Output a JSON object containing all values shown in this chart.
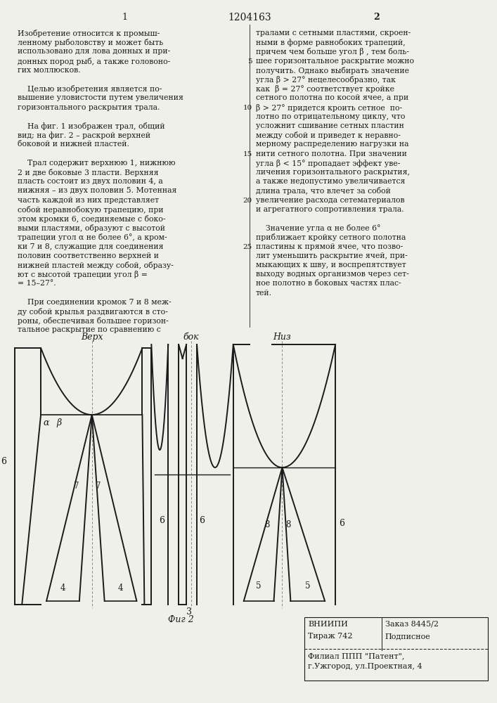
{
  "title_center": "1204163",
  "page_left": "1",
  "page_right": "2",
  "col1_text": [
    "Изобретение относится к промыш-",
    "ленному рыболовству и может быть",
    "использовано для лова донных и при-",
    "донных пород рыб, а также головоно-",
    "гих моллюсков.",
    "",
    "    Целью изобретения является по-",
    "вышение уловистости путем увеличения",
    "горизонтального раскрытия трала.",
    "",
    "    На фиг. 1 изображен трал, общий",
    "вид; на фиг. 2 – раскрой верхней",
    "боковой и нижней пластей.",
    "",
    "    Трал содержит верхнюю 1, нижнюю",
    "2 и две боковые 3 пласти. Верхняя",
    "пласть состоит из двух половин 4, а",
    "нижняя – из двух половин 5. Мотенная",
    "часть каждой из них представляет",
    "собой неравнобокую трапецию, при",
    "этом кромки 6, соединяемые с боко-",
    "выми пластями, образуют с высотой",
    "трапеции угол α не более 6°, а кром-",
    "ки 7 и 8, служащие для соединения",
    "половин соответственно верхней и",
    "нижней пластей между собой, образу-",
    "ют с высотой трапеции угол β =",
    "= 15–27°.",
    "",
    "    При соединении кромок 7 и 8 меж-",
    "ду собой крылья раздвигаются в сто-",
    "роны, обеспечивая большее горизон-",
    "тальное раскрытие по сравнению с"
  ],
  "col2_text": [
    "тралами с сетными пластями, скроен-",
    "ными в форме равнобоких трапеций,",
    "причем чем больше угол β , тем боль-",
    "шее горизонтальное раскрытие можно",
    "получить. Однако выбирать значение",
    "угла β > 27° нецелесообразно, так",
    "как  β = 27° соответствует кройке",
    "сетного полотна по косой ячее, а при",
    "β > 27° придется кроить сетное  по-",
    "лотно по отрицательному циклу, что",
    "усложнит сшивание сетных пластин",
    "между собой и приведет к неравно-",
    "мерному распределению нагрузки на",
    "нити сетного полотна. При значении",
    "угла β < 15° пропадает эффект уве-",
    "личения горизонтального раскрытия,",
    "а также недопустимо увеличивается",
    "длина трала, что влечет за собой",
    "увеличение расхода сетематериалов",
    "и агрегатного сопротивления трала.",
    "",
    "    Значение угла α не более 6°",
    "приближает кройку сетного полотна",
    "пластины к прямой ячее, что позво-",
    "лит уменьшить раскрытие ячей, при-",
    "мыкающих к шву, и воспрепятствует",
    "выходу водных организмов через сет-",
    "ное полотно в боковых частях плас-",
    "тей."
  ],
  "fig_caption": "Фиг 2",
  "label_verk": "Верх",
  "label_bok": "бок",
  "label_niz": "Низ",
  "bottom_left": "ВНИИПИ",
  "bottom_order": "Заказ 8445/2",
  "bottom_tirazh": "Тираж 742",
  "bottom_podp": "Подписное",
  "bottom_line2": "Филиал ППП \"Патент\",",
  "bottom_line3": "г.Ужгород, ул.Проектная, 4",
  "bg_color": "#f0f0eb",
  "text_color": "#1a1a1a",
  "line_color": "#1a1a1a"
}
